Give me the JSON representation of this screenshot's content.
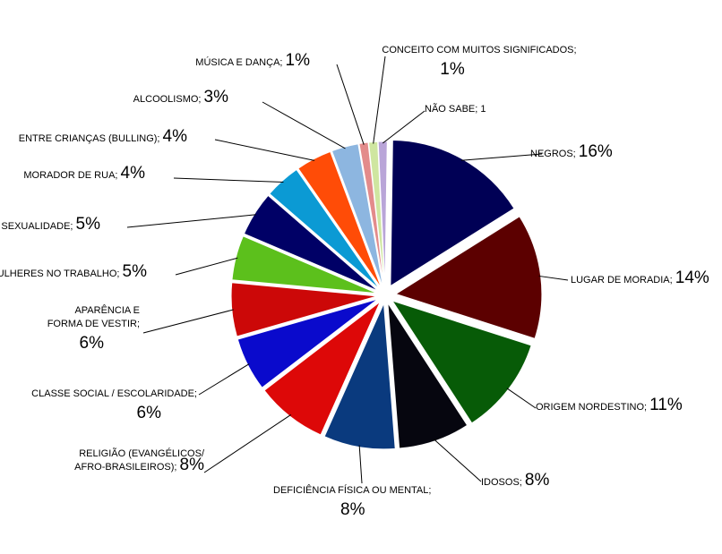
{
  "chart_data": {
    "type": "pie",
    "title": "",
    "exploded": true,
    "slices": [
      {
        "label": "NEGROS",
        "value": 16,
        "value_text": "16%",
        "color": "#000055"
      },
      {
        "label": "LUGAR DE MORADIA",
        "value": 14,
        "value_text": "14%",
        "color": "#5c0000"
      },
      {
        "label": "ORIGEM NORDESTINO",
        "value": 11,
        "value_text": "11%",
        "color": "#075b07"
      },
      {
        "label": "IDOSOS",
        "value": 8,
        "value_text": "8%",
        "color": "#06060f"
      },
      {
        "label": "DEFICIÊNCIA FÍSICA OU MENTAL",
        "value": 8,
        "value_text": "8%",
        "color": "#0a3a7e"
      },
      {
        "label": "RELIGIÃO (EVANGÉLICOS/ AFRO-BRASILEIROS)",
        "value": 8,
        "value_text": "8%",
        "color": "#dd0808"
      },
      {
        "label": "CLASSE SOCIAL / ESCOLARIDADE",
        "value": 6,
        "value_text": "6%",
        "color": "#0a0acc"
      },
      {
        "label": "APARÊNCIA E FORMA DE VESTIR",
        "value": 6,
        "value_text": "6%",
        "color": "#cc0808"
      },
      {
        "label": "MULHERES NO TRABALHO",
        "value": 5,
        "value_text": "5%",
        "color": "#5cc01c"
      },
      {
        "label": "SEXUALIDADE",
        "value": 5,
        "value_text": "5%",
        "color": "#000066"
      },
      {
        "label": "MORADOR DE RUA",
        "value": 4,
        "value_text": "4%",
        "color": "#0b9ad4"
      },
      {
        "label": "ENTRE CRIANÇAS (BULLING)",
        "value": 4,
        "value_text": "4%",
        "color": "#ff4c07"
      },
      {
        "label": "ALCOOLISMO",
        "value": 3,
        "value_text": "3%",
        "color": "#8db6e0"
      },
      {
        "label": "MÚSICA E DANÇA",
        "value": 1,
        "value_text": "1%",
        "color": "#e38b8b"
      },
      {
        "label": "CONCEITO COM MUITOS SIGNIFICADOS",
        "value": 1,
        "value_text": "1%",
        "color": "#cfe6a0"
      },
      {
        "label": "NÃO SABE",
        "value": 1,
        "value_text": "1",
        "color": "#b9a5d8"
      }
    ],
    "label_texts": [
      {
        "lines": [
          "NEGROS; "
        ],
        "big": "16%",
        "big_inline": true
      },
      {
        "lines": [
          "LUGAR DE MORADIA; "
        ],
        "big": "14%",
        "big_inline": true
      },
      {
        "lines": [
          "ORIGEM NORDESTINO; "
        ],
        "big": "11%",
        "big_inline": true
      },
      {
        "lines": [
          "IDOSOS; "
        ],
        "big": "8%",
        "big_inline": true
      },
      {
        "lines": [
          "DEFICIÊNCIA FÍSICA OU MENTAL;"
        ],
        "big": "8%",
        "big_inline": false
      },
      {
        "lines": [
          "RELIGIÃO (EVANGÉLICOS/",
          "AFRO-BRASILEIROS); "
        ],
        "big": "8%",
        "big_inline": true
      },
      {
        "lines": [
          "CLASSE SOCIAL / ESCOLARIDADE;"
        ],
        "big": "6%",
        "big_inline": false
      },
      {
        "lines": [
          "APARÊNCIA E",
          "FORMA DE VESTIR;"
        ],
        "big": "6%",
        "big_inline": false
      },
      {
        "lines": [
          "MULHERES NO TRABALHO; "
        ],
        "big": "5%",
        "big_inline": true
      },
      {
        "lines": [
          "SEXUALIDADE; "
        ],
        "big": "5%",
        "big_inline": true
      },
      {
        "lines": [
          "MORADOR DE RUA; "
        ],
        "big": "4%",
        "big_inline": true
      },
      {
        "lines": [
          "ENTRE CRIANÇAS (BULLING); "
        ],
        "big": "4%",
        "big_inline": true
      },
      {
        "lines": [
          "ALCOOLISMO; "
        ],
        "big": "3%",
        "big_inline": true
      },
      {
        "lines": [
          "MÚSICA E DANÇA; "
        ],
        "big": "1%",
        "big_inline": true
      },
      {
        "lines": [
          "CONCEITO COM MUITOS SIGNIFICADOS;"
        ],
        "big": "1%",
        "big_inline": false
      },
      {
        "lines": [
          "NÃO SABE; 1"
        ],
        "big": "",
        "big_inline": true
      }
    ]
  }
}
